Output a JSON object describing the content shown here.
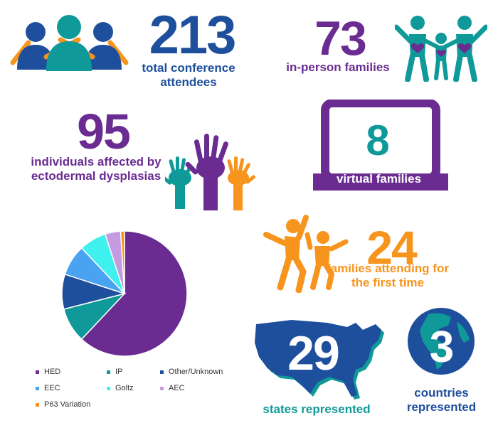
{
  "colors": {
    "blue": "#1e4f9c",
    "purple": "#6a2c91",
    "teal": "#0f9a99",
    "orange": "#f7941d"
  },
  "stats": {
    "attendees": {
      "number": "213",
      "label": "total conference attendees",
      "icon": "people-group-icon"
    },
    "in_person": {
      "number": "73",
      "label": "in-person families",
      "icon": "family-icon"
    },
    "affected": {
      "number": "95",
      "label": "individuals affected by ectodermal dysplasias",
      "icon": "raised-hands-icon"
    },
    "virtual": {
      "number": "8",
      "label": "virtual families",
      "icon": "laptop-icon"
    },
    "first_time": {
      "number": "24",
      "label": "families attending for the first time",
      "icon": "jumping-people-icon"
    },
    "states": {
      "number": "29",
      "label": "states represented",
      "icon": "usa-map-icon"
    },
    "countries": {
      "number": "3",
      "label": "countries represented",
      "icon": "globe-icon"
    }
  },
  "chart_data": {
    "type": "pie",
    "title": "",
    "slices": [
      {
        "name": "HED",
        "value": 62,
        "color": "#6a2c91"
      },
      {
        "name": "IP",
        "value": 9,
        "color": "#0f9a99"
      },
      {
        "name": "Other/Unknown",
        "value": 9,
        "color": "#1e4f9c"
      },
      {
        "name": "EEC",
        "value": 8,
        "color": "#4aa3f0"
      },
      {
        "name": "Goltz",
        "value": 7,
        "color": "#3ff0ee"
      },
      {
        "name": "AEC",
        "value": 4,
        "color": "#c49be0"
      },
      {
        "name": "P63 Variation",
        "value": 1,
        "color": "#f7941d"
      }
    ],
    "legend_placement": "bottom"
  }
}
